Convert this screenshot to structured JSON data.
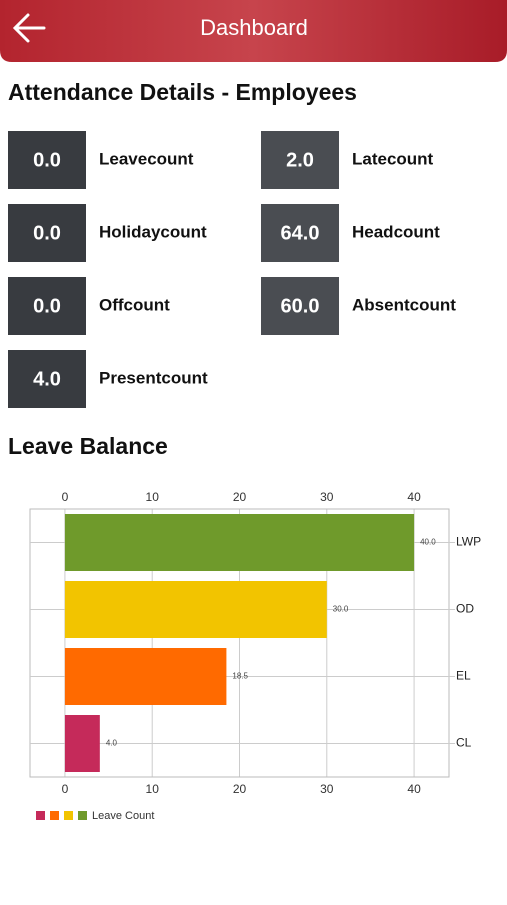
{
  "header": {
    "title": "Dashboard"
  },
  "attendance": {
    "title": "Attendance Details - Employees",
    "items": [
      {
        "value": "0.0",
        "label": "Leavecount"
      },
      {
        "value": "2.0",
        "label": "Latecount"
      },
      {
        "value": "0.0",
        "label": "Holidaycount"
      },
      {
        "value": "64.0",
        "label": "Headcount"
      },
      {
        "value": "0.0",
        "label": "Offcount"
      },
      {
        "value": "60.0",
        "label": "Absentcount"
      },
      {
        "value": "4.0",
        "label": "Presentcount"
      }
    ]
  },
  "leave_balance": {
    "title": "Leave Balance"
  },
  "chart_data": {
    "type": "hbar",
    "categories": [
      "LWP",
      "OD",
      "EL",
      "CL"
    ],
    "series": [
      {
        "name": "Leave Count",
        "colors": [
          "#6f9a2b",
          "#f2c400",
          "#ff6a00",
          "#c52a5a"
        ],
        "values": [
          40,
          30,
          18.5,
          4
        ],
        "value_labels": [
          "40.0",
          "30.0",
          "18.5",
          "4.0"
        ]
      }
    ],
    "xlim": [
      -4,
      44
    ],
    "xticks": [
      0,
      10,
      20,
      30,
      40
    ],
    "grid": true
  }
}
